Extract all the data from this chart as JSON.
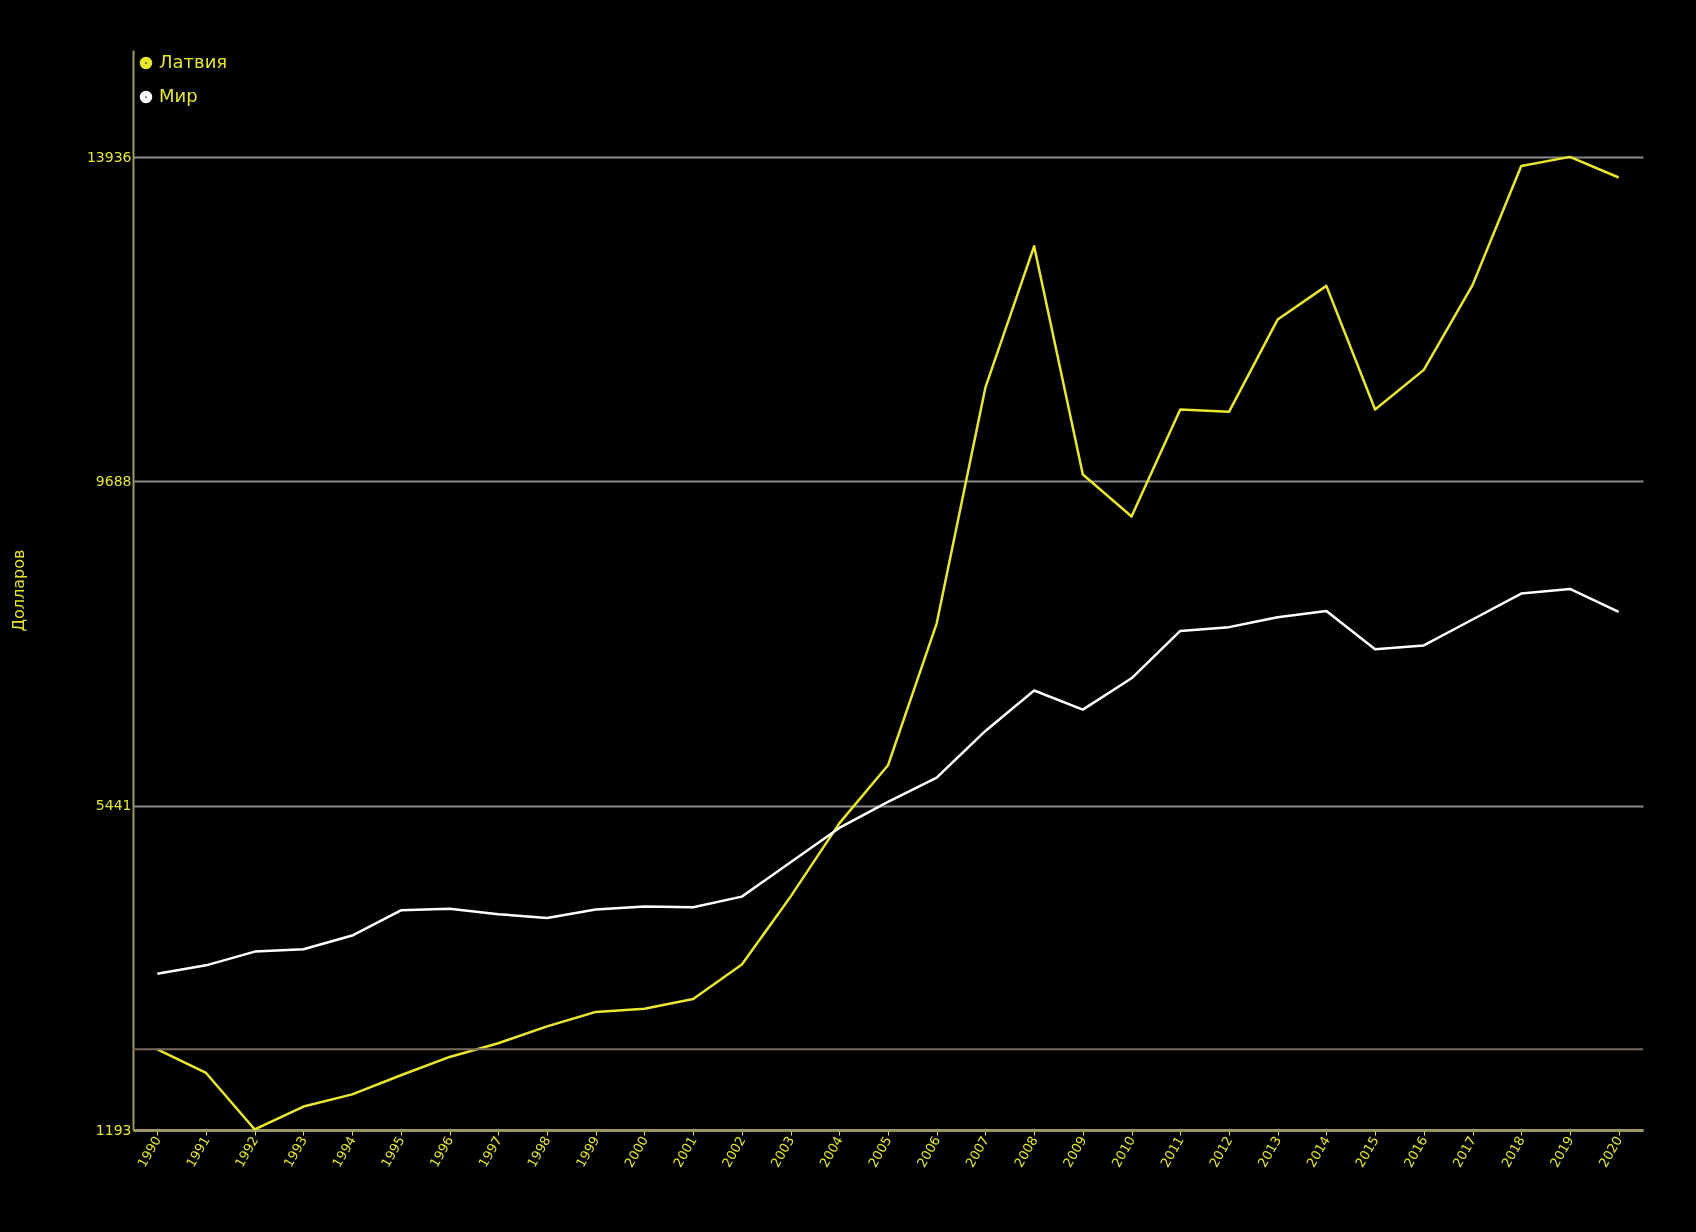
{
  "chart_data": {
    "type": "line",
    "ylabel": "Долларов",
    "categories": [
      "1990",
      "1991",
      "1992",
      "1993",
      "1994",
      "1995",
      "1996",
      "1997",
      "1998",
      "1999",
      "2000",
      "2001",
      "2002",
      "2003",
      "2004",
      "2005",
      "2006",
      "2007",
      "2008",
      "2009",
      "2010",
      "2011",
      "2012",
      "2013",
      "2014",
      "2015",
      "2016",
      "2017",
      "2018",
      "2019",
      "2020"
    ],
    "series": [
      {
        "name": "Латвия",
        "color": "#e8e830",
        "values": [
          2250,
          1940,
          1200,
          1500,
          1660,
          1910,
          2150,
          2330,
          2550,
          2740,
          2780,
          2910,
          3360,
          4250,
          5210,
          5970,
          7830,
          10920,
          12770,
          9780,
          9230,
          10630,
          10600,
          11810,
          12250,
          10630,
          11150,
          12260,
          13820,
          13940,
          13670
        ]
      },
      {
        "name": "Мир",
        "color": "#ffffff",
        "values": [
          3240,
          3350,
          3530,
          3560,
          3740,
          4070,
          4090,
          4020,
          3970,
          4080,
          4120,
          4110,
          4250,
          4700,
          5150,
          5490,
          5810,
          6420,
          6950,
          6700,
          7110,
          7730,
          7780,
          7910,
          7990,
          7490,
          7540,
          7880,
          8220,
          8280,
          7980
        ]
      }
    ],
    "ylim": [
      1193,
      15340
    ],
    "yticks": [
      1193,
      5441,
      9688,
      13936
    ],
    "grid": "y",
    "legend": "top left",
    "ref_lines": [
      {
        "axis": "y",
        "value": 2250,
        "color": "#7a6a5e"
      }
    ]
  }
}
